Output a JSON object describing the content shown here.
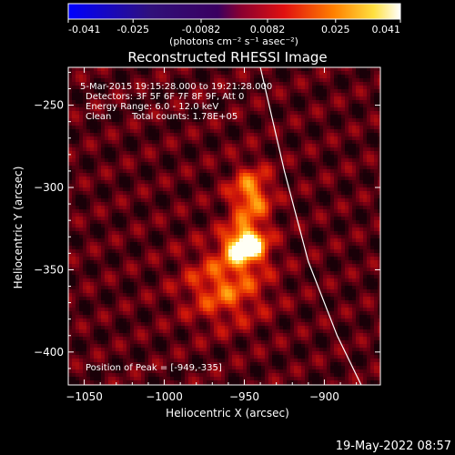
{
  "colorbar": {
    "tick_labels": [
      "-0.041",
      "-0.025",
      "-0.0082",
      "0.0082",
      "0.025",
      "0.041"
    ],
    "tick_values": [
      -0.041,
      -0.025,
      -0.0082,
      0.0082,
      0.025,
      0.041
    ],
    "range": [
      -0.041,
      0.041
    ],
    "unit_label": "(photons cm⁻² s⁻¹ asec⁻²)"
  },
  "chart_data": {
    "type": "heatmap",
    "title": "Reconstructed RHESSI Image",
    "xlabel": "Heliocentric X (arcsec)",
    "ylabel": "Heliocentric Y (arcsec)",
    "xlim": [
      -1060,
      -865
    ],
    "ylim": [
      -420,
      -227
    ],
    "xticks": [
      -1050,
      -1000,
      -950,
      -900
    ],
    "yticks": [
      -400,
      -350,
      -300,
      -250
    ],
    "xtick_labels": [
      "−1050",
      "−1000",
      "−950",
      "−900"
    ],
    "ytick_labels": [
      "−400",
      "−350",
      "−300",
      "−250"
    ],
    "sources": [
      {
        "x": -949,
        "y": -335,
        "peak": 0.041,
        "sigma_x": 9,
        "sigma_y": 8
      },
      {
        "x": -946,
        "y": -305,
        "peak": 0.026,
        "sigma_x": 9,
        "sigma_y": 12
      },
      {
        "x": -962,
        "y": -360,
        "peak": 0.02,
        "sigma_x": 18,
        "sigma_y": 16
      }
    ],
    "limb_curve": [
      [
        -940,
        -227
      ],
      [
        -925,
        -290
      ],
      [
        -910,
        -345
      ],
      [
        -892,
        -390
      ],
      [
        -877,
        -420
      ]
    ],
    "annotations": {
      "time_range": "5-Mar-2015 19:15:28.000 to 19:21:28.000",
      "detectors": "Detectors: 3F 5F 6F 7F 8F 9F, Att 0",
      "energy": "Energy Range: 6.0 - 12.0 keV",
      "method": "Clean",
      "counts": "Total counts: 1.78E+05",
      "peak_position": "Position of Peak = [-949,-335]"
    }
  },
  "footer": {
    "date": "19-May-2022 08:57"
  },
  "colors": {
    "background": "#000000",
    "text": "#ffffff",
    "limb": "#ffffff"
  }
}
